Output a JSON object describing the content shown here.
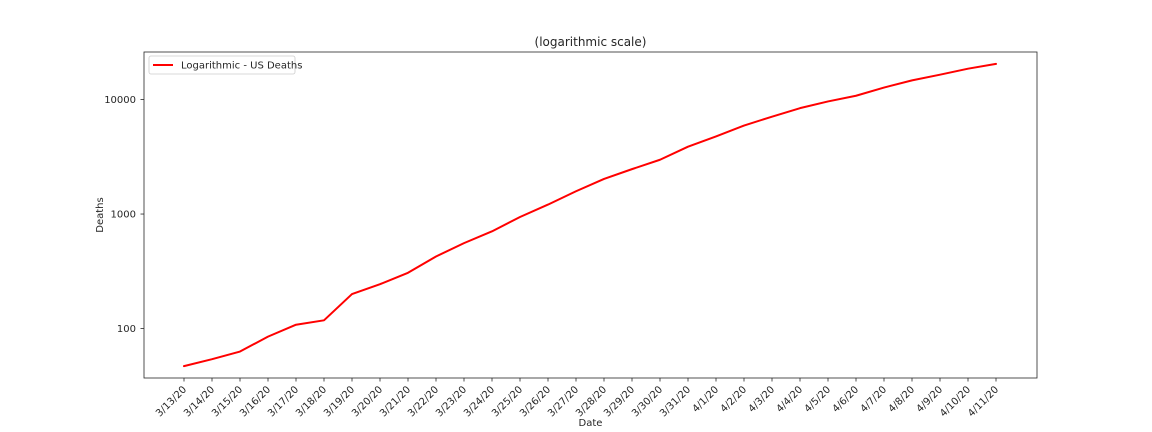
{
  "chart_data": {
    "type": "line",
    "title": "(logarithmic scale)",
    "xlabel": "Date",
    "ylabel": "Deaths",
    "yscale": "log",
    "ylim": [
      37,
      26000
    ],
    "yticks": [
      100,
      1000,
      10000
    ],
    "ytick_labels": [
      "100",
      "1000",
      "10000"
    ],
    "grid": false,
    "legend_position": "top-left",
    "categories": [
      "3/13/20",
      "3/14/20",
      "3/15/20",
      "3/16/20",
      "3/17/20",
      "3/18/20",
      "3/19/20",
      "3/20/20",
      "3/21/20",
      "3/22/20",
      "3/23/20",
      "3/24/20",
      "3/25/20",
      "3/26/20",
      "3/27/20",
      "3/28/20",
      "3/29/20",
      "3/30/20",
      "3/31/20",
      "4/1/20",
      "4/2/20",
      "4/3/20",
      "4/4/20",
      "4/5/20",
      "4/6/20",
      "4/7/20",
      "4/8/20",
      "4/9/20",
      "4/10/20",
      "4/11/20"
    ],
    "series": [
      {
        "name": "Logarithmic - US Deaths",
        "color": "#ff0000",
        "values": [
          47,
          54,
          63,
          85,
          108,
          118,
          200,
          244,
          307,
          426,
          557,
          706,
          942,
          1209,
          1581,
          2026,
          2467,
          2978,
          3873,
          4757,
          5926,
          7087,
          8407,
          9619,
          10783,
          12722,
          14695,
          16478,
          18586,
          20463
        ]
      }
    ]
  }
}
